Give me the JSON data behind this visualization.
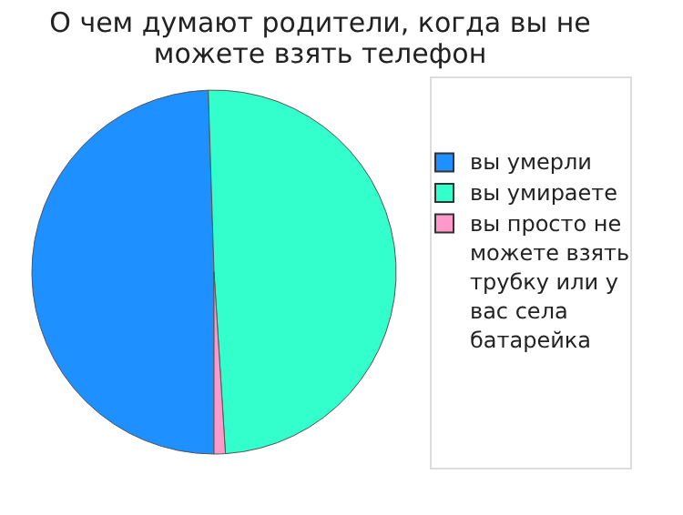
{
  "chart_data": {
    "type": "pie",
    "title": "О чем думают родители, когда вы не можете взять телефон",
    "categories": [
      "вы умерли",
      "вы умираете",
      "вы просто не можете взять трубку или у вас села батарейка"
    ],
    "values": [
      49.5,
      49.5,
      1
    ],
    "colors": [
      "#1e90ff",
      "#33ffcc",
      "#ff99cc"
    ],
    "legend": "right"
  }
}
